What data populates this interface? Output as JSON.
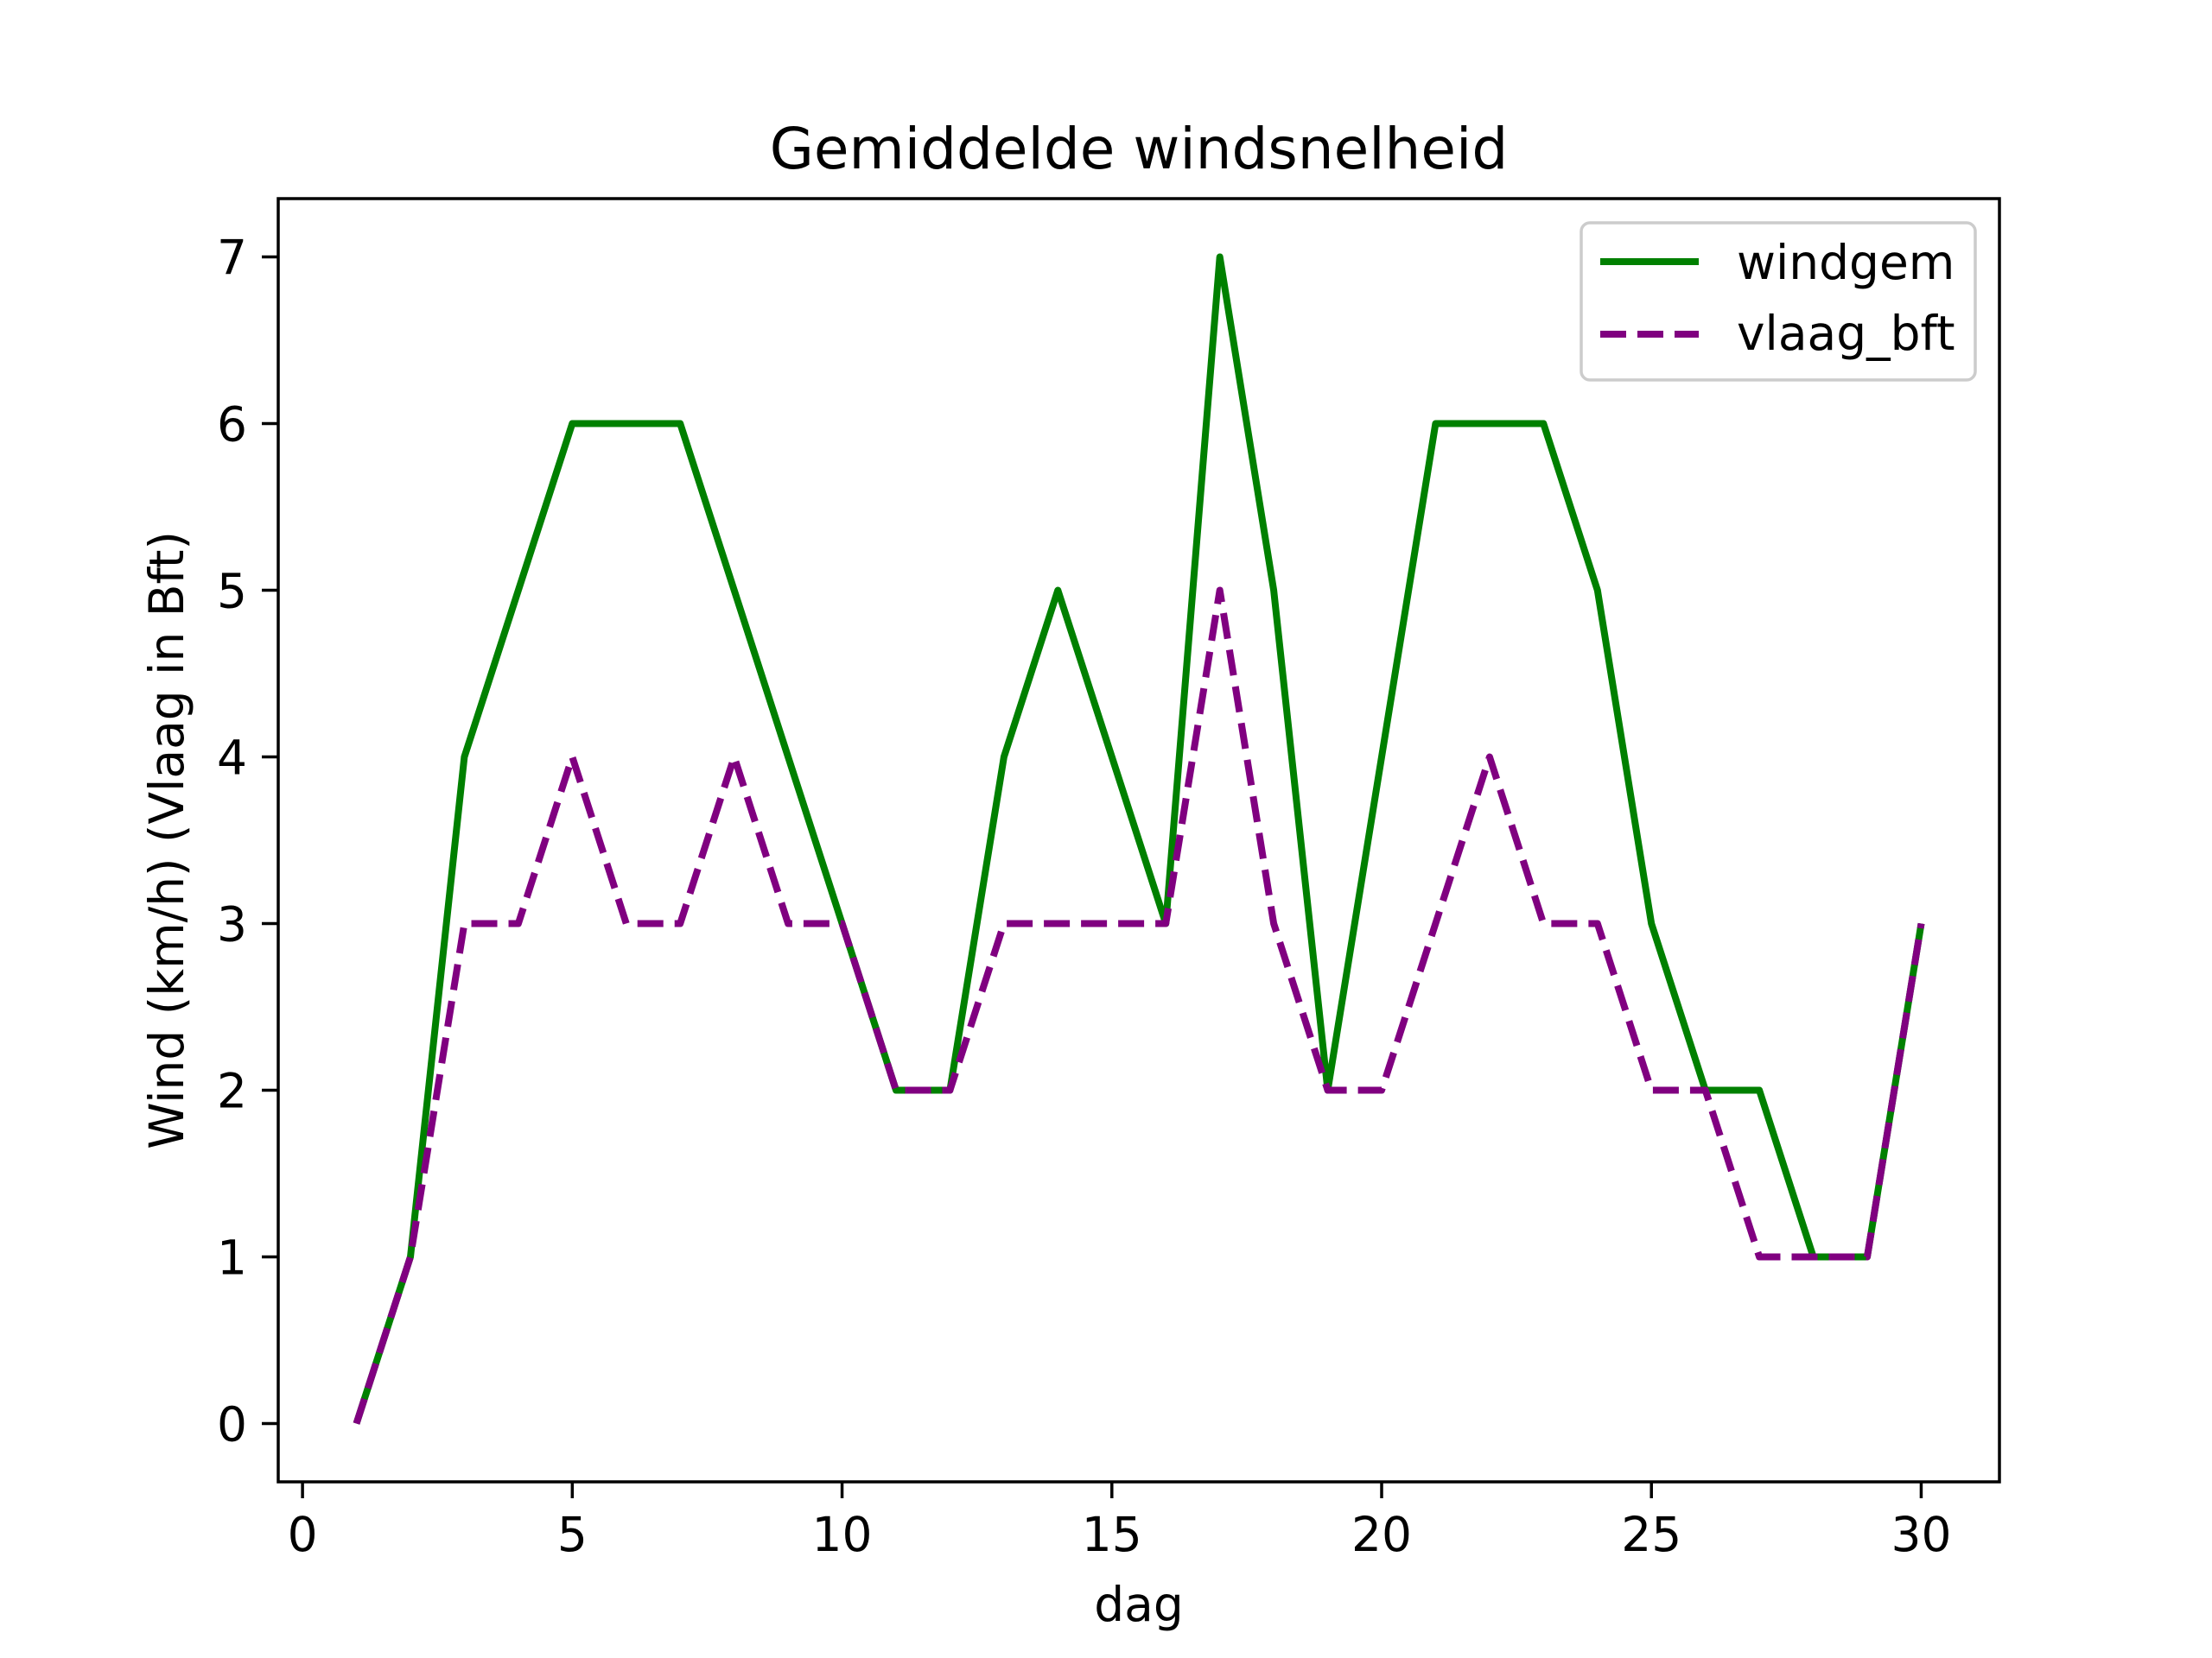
{
  "chart_data": {
    "type": "line",
    "title": "Gemiddelde windsnelheid",
    "xlabel": "dag",
    "ylabel": "Wind (km/h) (Vlaag in Bft)",
    "xlim": [
      -0.45,
      31.45
    ],
    "ylim": [
      -0.35,
      7.35
    ],
    "xticks": [
      0,
      5,
      10,
      15,
      20,
      25,
      30
    ],
    "yticks": [
      0,
      1,
      2,
      3,
      4,
      5,
      6,
      7
    ],
    "grid": false,
    "legend_position": "top-right",
    "x": [
      1,
      2,
      3,
      4,
      5,
      6,
      7,
      8,
      9,
      10,
      11,
      12,
      13,
      14,
      15,
      16,
      17,
      18,
      19,
      20,
      21,
      22,
      23,
      24,
      25,
      26,
      27,
      28,
      29,
      30
    ],
    "series": [
      {
        "name": "windgem",
        "color": "#008000",
        "style": "solid",
        "values": [
          0,
          1,
          4,
          5,
          6,
          6,
          6,
          5,
          4,
          3,
          2,
          2,
          4,
          5,
          4,
          3,
          7,
          5,
          2,
          4,
          6,
          6,
          6,
          5,
          3,
          2,
          2,
          1,
          1,
          3
        ]
      },
      {
        "name": "vlaag_bft",
        "color": "#800080",
        "style": "dashed",
        "values": [
          0,
          1,
          3,
          3,
          4,
          3,
          3,
          4,
          3,
          3,
          2,
          2,
          3,
          3,
          3,
          3,
          5,
          3,
          2,
          2,
          3,
          4,
          3,
          3,
          2,
          2,
          1,
          1,
          1,
          3
        ]
      }
    ]
  }
}
